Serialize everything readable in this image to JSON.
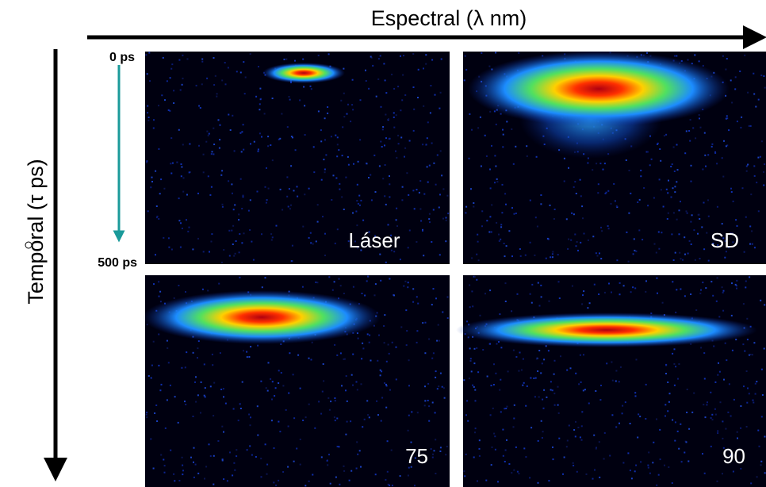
{
  "axes": {
    "horizontal": "Espectral (λ nm)",
    "vertical": "Temporal (τ ps)"
  },
  "time_marks": {
    "start": "0 ps",
    "end": "500 ps"
  },
  "panels": [
    {
      "label": "Láser"
    },
    {
      "label": "SD"
    },
    {
      "label": "75"
    },
    {
      "label": "90"
    }
  ]
}
